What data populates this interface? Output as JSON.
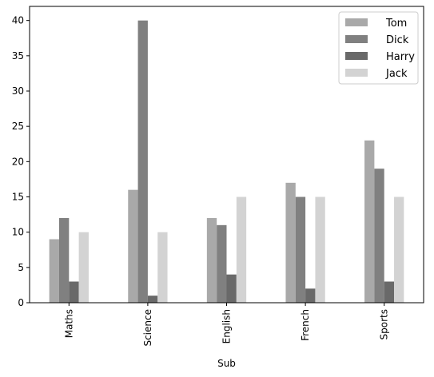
{
  "chart_data": {
    "type": "bar",
    "title": "",
    "xlabel": "Sub",
    "ylabel": "",
    "categories": [
      "Maths",
      "Science",
      "English",
      "French",
      "Sports"
    ],
    "series": [
      {
        "name": "Tom",
        "color": "#a9a9a9",
        "values": [
          9,
          16,
          12,
          17,
          23
        ]
      },
      {
        "name": "Dick",
        "color": "#808080",
        "values": [
          12,
          40,
          11,
          15,
          19
        ]
      },
      {
        "name": "Harry",
        "color": "#696969",
        "values": [
          3,
          1,
          4,
          2,
          3
        ]
      },
      {
        "name": "Jack",
        "color": "#d3d3d3",
        "values": [
          10,
          10,
          15,
          15,
          15
        ]
      }
    ],
    "ylim": [
      0,
      42
    ],
    "yticks": [
      0,
      5,
      10,
      15,
      20,
      25,
      30,
      35,
      40
    ],
    "grid": false,
    "legend_position": "top-right"
  }
}
